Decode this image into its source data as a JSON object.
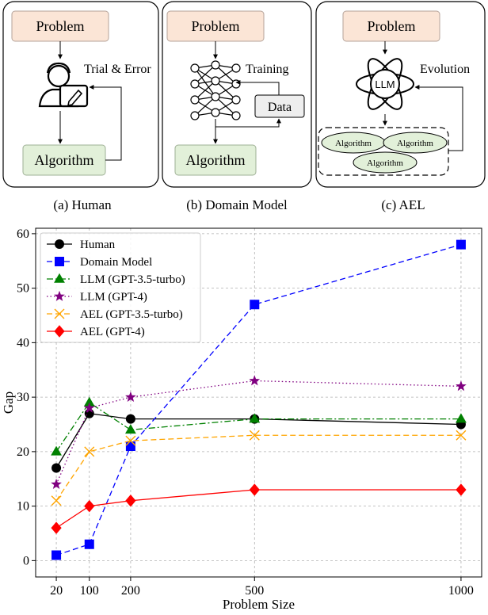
{
  "panels": [
    {
      "problem": "Problem",
      "algorithm": "Algorithm",
      "arrow_label": "Trial & Error",
      "caption": "(a) Human"
    },
    {
      "problem": "Problem",
      "algorithm": "Algorithm",
      "arrow_label": "Training",
      "data_label": "Data",
      "caption": "(b) Domain Model"
    },
    {
      "problem": "Problem",
      "llm_label": "LLM",
      "arrow_label": "Evolution",
      "pool": [
        "Algorithm",
        "Algorithm",
        "Algorithm"
      ],
      "caption": "(c) AEL"
    }
  ],
  "colors": {
    "problem_fill": "#fbe5d6",
    "algorithm_fill": "#e2f0d9",
    "data_fill": "#eeeeee",
    "ellipse_fill": "#e2f0d9"
  },
  "chart_data": {
    "type": "line",
    "xlabel": "Problem Size",
    "ylabel": "Gap",
    "x": [
      20,
      100,
      200,
      500,
      1000
    ],
    "xticks": [
      "20",
      "100",
      "200",
      "500",
      "1000"
    ],
    "xlim": [
      -30,
      1050
    ],
    "ylim": [
      -3,
      61
    ],
    "yticks": [
      0,
      10,
      20,
      30,
      40,
      50,
      60
    ],
    "grid": true,
    "legend": "top-left",
    "series": [
      {
        "name": "Human",
        "values": [
          17,
          27,
          26,
          26,
          25
        ],
        "color": "#000000",
        "marker": "circle",
        "dash": "solid"
      },
      {
        "name": "Domain Model",
        "values": [
          1,
          3,
          21,
          47,
          58
        ],
        "color": "#0000ff",
        "marker": "square",
        "dash": "dashed"
      },
      {
        "name": "LLM (GPT-3.5-turbo)",
        "values": [
          20,
          29,
          24,
          26,
          26
        ],
        "color": "#008000",
        "marker": "triangle",
        "dash": "dashdot"
      },
      {
        "name": "LLM (GPT-4)",
        "values": [
          14,
          28,
          30,
          33,
          32
        ],
        "color": "#800080",
        "marker": "star",
        "dash": "dotted"
      },
      {
        "name": "AEL (GPT-3.5-turbo)",
        "values": [
          11,
          20,
          22,
          23,
          23
        ],
        "color": "#ffa500",
        "marker": "x",
        "dash": "dashed"
      },
      {
        "name": "AEL (GPT-4)",
        "values": [
          6,
          10,
          11,
          13,
          13
        ],
        "color": "#ff0000",
        "marker": "diamond",
        "dash": "solid"
      }
    ]
  }
}
